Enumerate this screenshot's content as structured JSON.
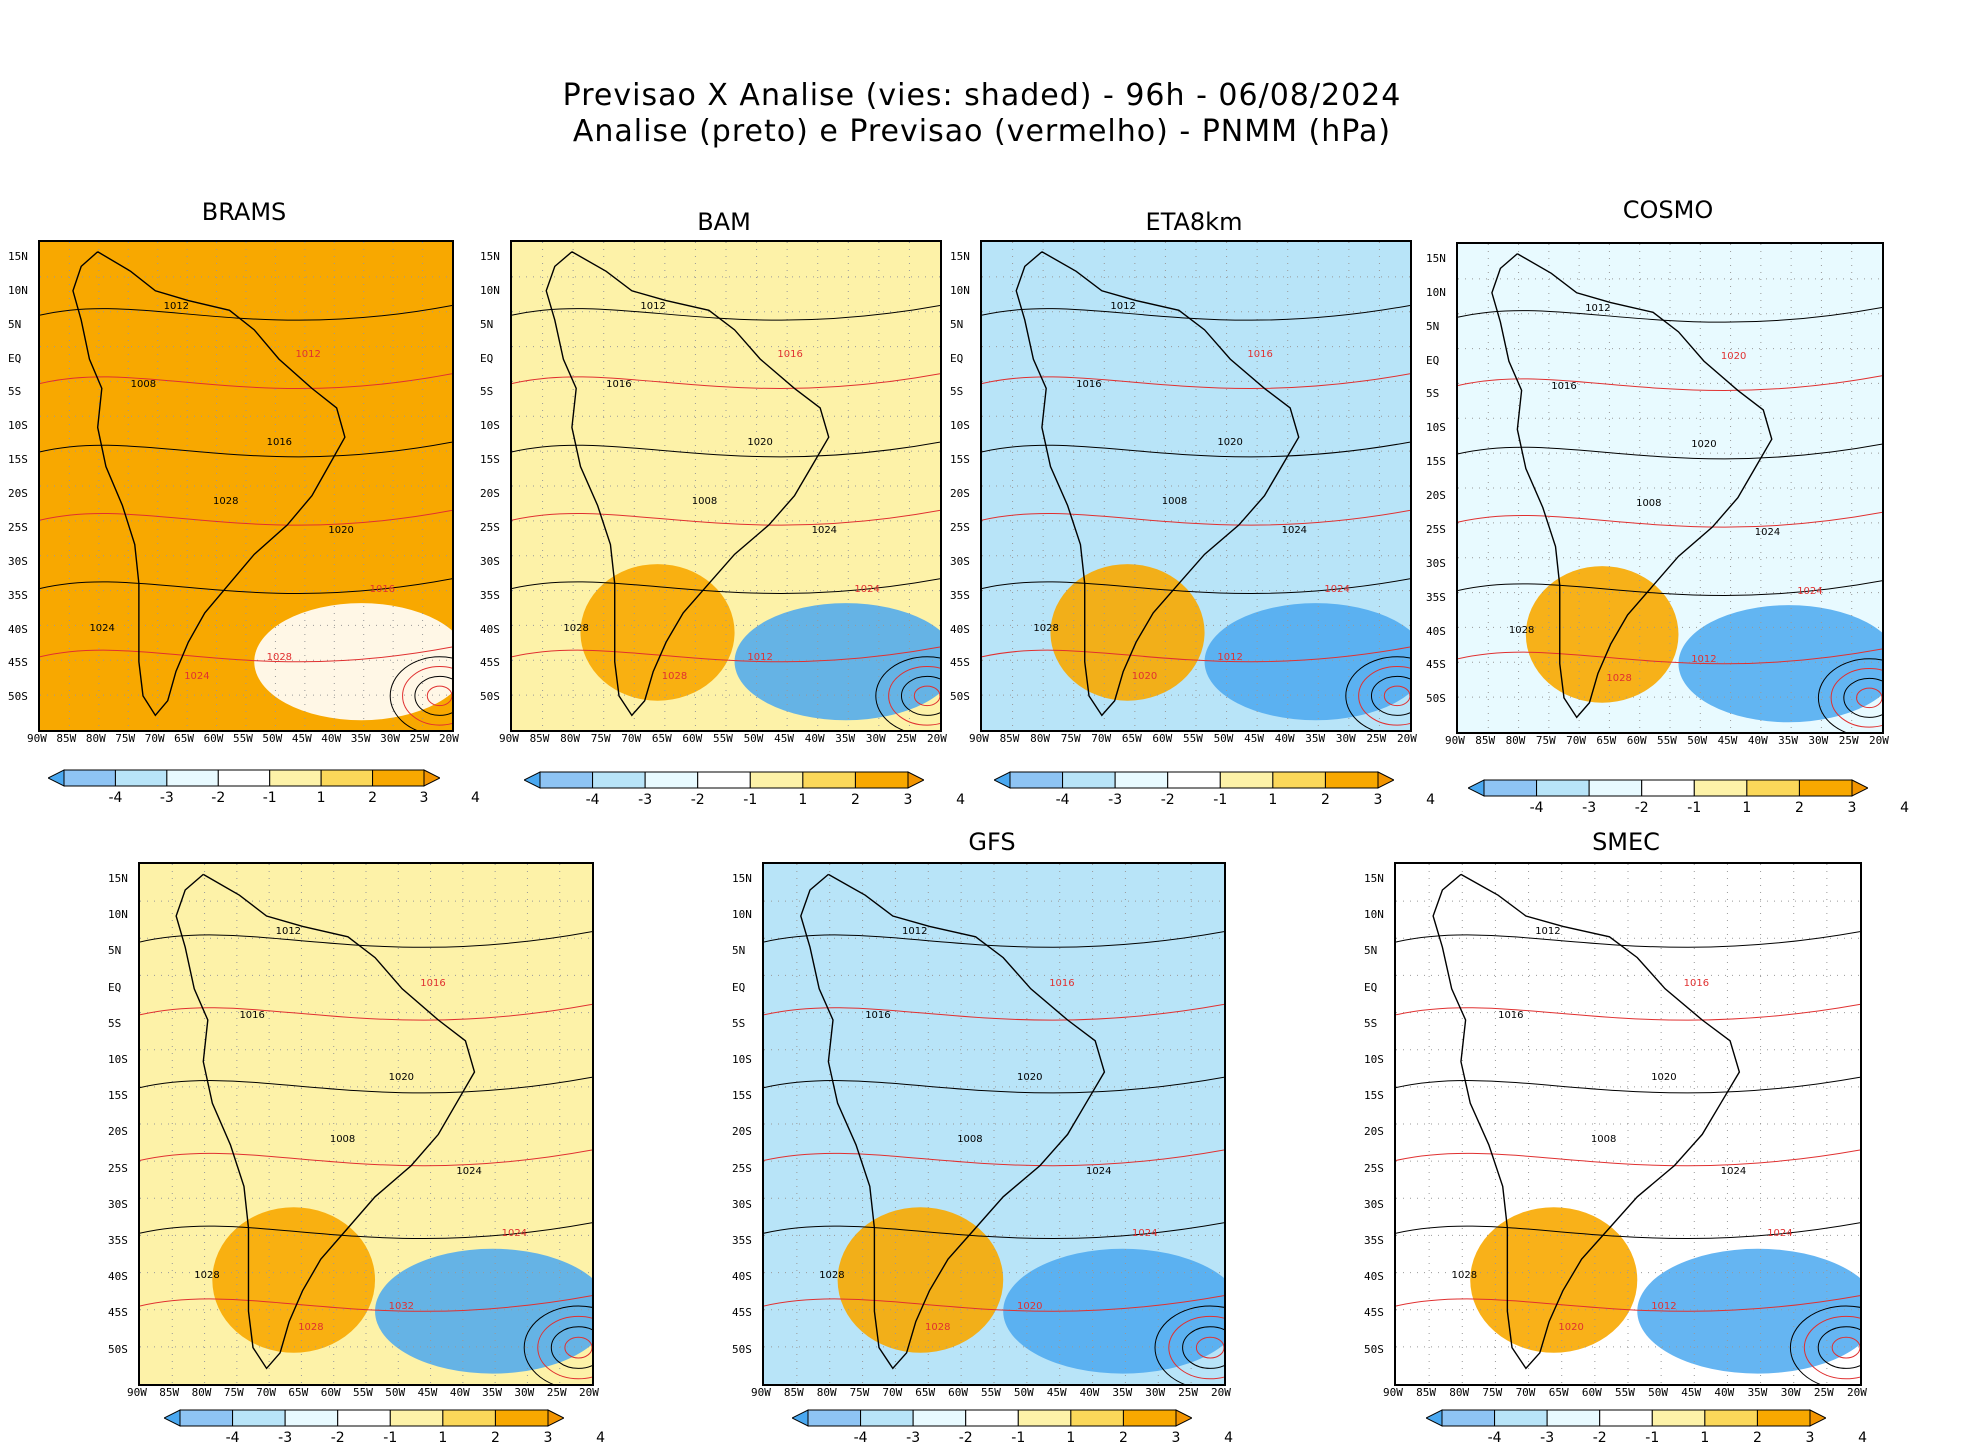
{
  "header": {
    "line1": "Previsao X Analise (vies: shaded) - 96h - 06/08/2024",
    "line2": "Analise (preto) e Previsao (vermelho) - PNMM (hPa)"
  },
  "lat_labels": [
    "15N",
    "10N",
    "5N",
    "EQ",
    "5S",
    "10S",
    "15S",
    "20S",
    "25S",
    "30S",
    "35S",
    "40S",
    "45S",
    "50S"
  ],
  "lon_labels": [
    "90W",
    "85W",
    "80W",
    "75W",
    "70W",
    "65W",
    "60W",
    "55W",
    "50W",
    "45W",
    "40W",
    "35W",
    "30W",
    "25W",
    "20W"
  ],
  "colorbar": {
    "labels": [
      "-4",
      "-3",
      "-2",
      "-1",
      "1",
      "2",
      "3",
      "4"
    ],
    "colors": [
      "#4aa8f0",
      "#8ec4f4",
      "#b8e4f8",
      "#e8faff",
      "#ffffff",
      "#fdf2a8",
      "#fbd85a",
      "#f8a800",
      "#f29400"
    ]
  },
  "colors": {
    "analysis": "#000000",
    "forecast": "#e03030"
  },
  "panels": [
    {
      "id": "brams",
      "title": "BRAMS",
      "dominant": "#f8a800",
      "isobars": [
        {
          "t": "1012",
          "c": "black"
        },
        {
          "t": "1008",
          "c": "black"
        },
        {
          "t": "1016",
          "c": "black"
        },
        {
          "t": "1020",
          "c": "black"
        },
        {
          "t": "1024",
          "c": "black"
        },
        {
          "t": "1028",
          "c": "black"
        },
        {
          "t": "1012",
          "c": "red"
        },
        {
          "t": "1016",
          "c": "red"
        },
        {
          "t": "1024",
          "c": "red"
        },
        {
          "t": "1028",
          "c": "red"
        }
      ]
    },
    {
      "id": "bam",
      "title": "BAM",
      "dominant": "#fdf2a8",
      "isobars": [
        {
          "t": "1012",
          "c": "black"
        },
        {
          "t": "1016",
          "c": "black"
        },
        {
          "t": "1020",
          "c": "black"
        },
        {
          "t": "1024",
          "c": "black"
        },
        {
          "t": "1028",
          "c": "black"
        },
        {
          "t": "1008",
          "c": "black"
        },
        {
          "t": "1016",
          "c": "red"
        },
        {
          "t": "1024",
          "c": "red"
        },
        {
          "t": "1028",
          "c": "red"
        },
        {
          "t": "1012",
          "c": "red"
        }
      ]
    },
    {
      "id": "eta8km",
      "title": "ETA8km",
      "dominant": "#b8e4f8",
      "isobars": [
        {
          "t": "1012",
          "c": "black"
        },
        {
          "t": "1016",
          "c": "black"
        },
        {
          "t": "1020",
          "c": "black"
        },
        {
          "t": "1024",
          "c": "black"
        },
        {
          "t": "1028",
          "c": "black"
        },
        {
          "t": "1008",
          "c": "black"
        },
        {
          "t": "1016",
          "c": "red"
        },
        {
          "t": "1024",
          "c": "red"
        },
        {
          "t": "1020",
          "c": "red"
        },
        {
          "t": "1012",
          "c": "red"
        }
      ]
    },
    {
      "id": "cosmo",
      "title": "COSMO",
      "dominant": "#e8faff",
      "isobars": [
        {
          "t": "1012",
          "c": "black"
        },
        {
          "t": "1016",
          "c": "black"
        },
        {
          "t": "1020",
          "c": "black"
        },
        {
          "t": "1024",
          "c": "black"
        },
        {
          "t": "1028",
          "c": "black"
        },
        {
          "t": "1008",
          "c": "black"
        },
        {
          "t": "1020",
          "c": "red"
        },
        {
          "t": "1024",
          "c": "red"
        },
        {
          "t": "1028",
          "c": "red"
        },
        {
          "t": "1012",
          "c": "red"
        }
      ]
    },
    {
      "id": "unnamed",
      "title": "",
      "dominant": "#fdf2a8",
      "isobars": [
        {
          "t": "1012",
          "c": "black"
        },
        {
          "t": "1016",
          "c": "black"
        },
        {
          "t": "1020",
          "c": "black"
        },
        {
          "t": "1024",
          "c": "black"
        },
        {
          "t": "1028",
          "c": "black"
        },
        {
          "t": "1008",
          "c": "black"
        },
        {
          "t": "1016",
          "c": "red"
        },
        {
          "t": "1024",
          "c": "red"
        },
        {
          "t": "1028",
          "c": "red"
        },
        {
          "t": "1032",
          "c": "red"
        }
      ]
    },
    {
      "id": "gfs",
      "title": "GFS",
      "dominant": "#b8e4f8",
      "isobars": [
        {
          "t": "1012",
          "c": "black"
        },
        {
          "t": "1016",
          "c": "black"
        },
        {
          "t": "1020",
          "c": "black"
        },
        {
          "t": "1024",
          "c": "black"
        },
        {
          "t": "1028",
          "c": "black"
        },
        {
          "t": "1008",
          "c": "black"
        },
        {
          "t": "1016",
          "c": "red"
        },
        {
          "t": "1024",
          "c": "red"
        },
        {
          "t": "1028",
          "c": "red"
        },
        {
          "t": "1020",
          "c": "red"
        }
      ]
    },
    {
      "id": "smec",
      "title": "SMEC",
      "dominant": "#ffffff",
      "isobars": [
        {
          "t": "1012",
          "c": "black"
        },
        {
          "t": "1016",
          "c": "black"
        },
        {
          "t": "1020",
          "c": "black"
        },
        {
          "t": "1024",
          "c": "black"
        },
        {
          "t": "1028",
          "c": "black"
        },
        {
          "t": "1008",
          "c": "black"
        },
        {
          "t": "1016",
          "c": "red"
        },
        {
          "t": "1024",
          "c": "red"
        },
        {
          "t": "1020",
          "c": "red"
        },
        {
          "t": "1012",
          "c": "red"
        }
      ]
    }
  ]
}
